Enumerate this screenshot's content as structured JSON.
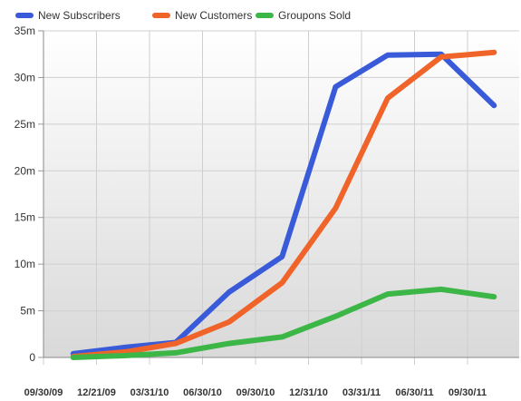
{
  "chart_data": {
    "type": "line",
    "x": [
      "11/15/09",
      "02/15/10",
      "05/15/10",
      "08/15/10",
      "11/15/10",
      "02/15/11",
      "05/15/11",
      "08/15/11",
      "11/15/11"
    ],
    "x_tick_labels": [
      "09/30/09",
      "12/21/09",
      "03/31/10",
      "06/30/10",
      "09/30/10",
      "12/31/10",
      "03/31/11",
      "06/30/11",
      "09/30/11"
    ],
    "y_tick_labels": [
      "0",
      "5m",
      "10m",
      "15m",
      "20m",
      "25m",
      "30m",
      "35m"
    ],
    "ylim": [
      0,
      35
    ],
    "grid": true,
    "legend_position": "top-left",
    "series": [
      {
        "name": "New Subscribers",
        "color": "#3a5bd9",
        "values": [
          0.4,
          1.1,
          1.6,
          7.0,
          10.8,
          29.0,
          32.4,
          32.5,
          27.0
        ]
      },
      {
        "name": "New Customers",
        "color": "#f0642a",
        "values": [
          0.1,
          0.6,
          1.5,
          3.8,
          8.0,
          16.0,
          27.8,
          32.2,
          32.7
        ]
      },
      {
        "name": "Groupons Sold",
        "color": "#3db648",
        "values": [
          0.0,
          0.2,
          0.5,
          1.5,
          2.2,
          4.4,
          6.8,
          7.3,
          6.5
        ]
      }
    ]
  }
}
